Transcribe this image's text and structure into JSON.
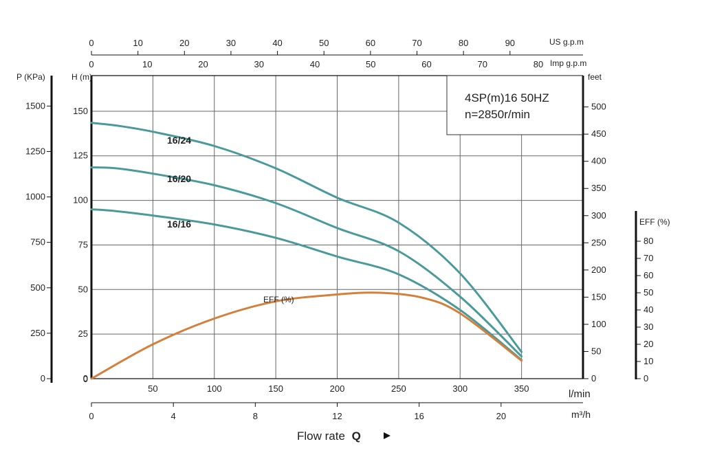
{
  "chart_data": {
    "type": "line",
    "title_lines": [
      "4SP(m)16  50HZ",
      "n=2850r/min"
    ],
    "x_axes": {
      "lmin": {
        "label": "l/min",
        "ticks": [
          50,
          100,
          150,
          200,
          250,
          300,
          350
        ],
        "range": [
          0,
          400
        ]
      },
      "m3h": {
        "label": "m³/h",
        "ticks": [
          0,
          4,
          8,
          12,
          16,
          20
        ],
        "range": [
          0,
          24
        ]
      },
      "us": {
        "label": "US g.p.m",
        "ticks": [
          0,
          10,
          20,
          30,
          40,
          50,
          60,
          70,
          80,
          90
        ],
        "range": [
          0,
          105.7
        ]
      },
      "imp": {
        "label": "Imp g.p.m",
        "ticks": [
          0,
          10,
          20,
          30,
          40,
          50,
          60,
          70,
          80
        ],
        "range": [
          0,
          88
        ]
      }
    },
    "y_axes": {
      "h": {
        "label": "H (m)",
        "ticks": [
          0,
          25,
          50,
          75,
          100,
          125,
          150
        ],
        "range": [
          0,
          170
        ]
      },
      "p": {
        "label": "P (KPa)",
        "ticks": [
          0,
          250,
          500,
          750,
          1000,
          1250,
          1500
        ],
        "range": [
          0,
          1667.7
        ]
      },
      "feet": {
        "label": "feet",
        "ticks": [
          0,
          50,
          100,
          150,
          200,
          250,
          300,
          350,
          400,
          450,
          500
        ],
        "range": [
          0,
          557.7
        ]
      },
      "eff": {
        "label": "EFF (%)",
        "ticks": [
          0,
          10,
          20,
          30,
          40,
          50,
          60,
          70,
          80
        ],
        "range": [
          0,
          100
        ]
      }
    },
    "series": [
      {
        "name": "16/24",
        "color": "#4a9a9a",
        "x": [
          0,
          20,
          50,
          100,
          150,
          200,
          250,
          300,
          350
        ],
        "y": [
          143.5,
          142,
          138.5,
          130.5,
          118,
          101.5,
          87.5,
          59,
          15
        ]
      },
      {
        "name": "16/20",
        "color": "#4a9a9a",
        "x": [
          0,
          20,
          50,
          100,
          150,
          200,
          250,
          300,
          350
        ],
        "y": [
          118.5,
          118,
          115,
          108.5,
          98.5,
          84.5,
          71.5,
          46,
          12.5
        ]
      },
      {
        "name": "16/16",
        "color": "#4a9a9a",
        "x": [
          0,
          20,
          50,
          100,
          150,
          200,
          250,
          300,
          350
        ],
        "y": [
          95,
          94,
          91.5,
          86.5,
          79,
          68.5,
          58.5,
          38.5,
          10.5
        ]
      },
      {
        "name": "EFF (%)",
        "color": "#d4803a",
        "x": [
          0,
          50,
          100,
          150,
          200,
          235,
          270,
          300,
          350
        ],
        "y": [
          0,
          20,
          35,
          45,
          49,
          50,
          47,
          38,
          10.5
        ]
      }
    ],
    "grid": true,
    "flow_label": "Flow rate",
    "flow_symbol": "Q"
  },
  "colors": {
    "pump_curve": "#4a9a9a",
    "eff_curve": "#d4803a",
    "grid": "#666666",
    "axis": "#111111"
  }
}
